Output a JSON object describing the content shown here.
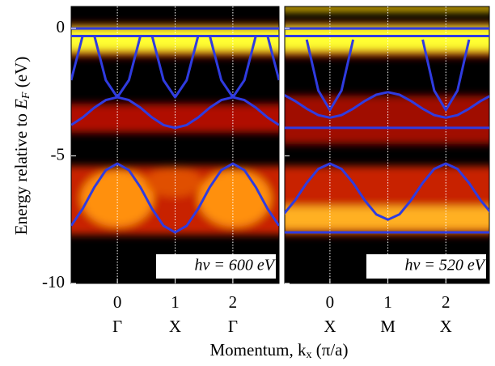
{
  "chart_data": [
    {
      "type": "line",
      "ylabel": [
        "Energy relative to ",
        "E",
        "F",
        " (eV)"
      ],
      "xlabel": [
        "Momentum, k",
        "x",
        " (π/a)"
      ],
      "annotation": "hν = 600 eV",
      "ylim": [
        -10,
        0.86
      ],
      "yticks": [
        0,
        -5,
        -10
      ],
      "xlim": [
        -0.8,
        2.8
      ],
      "xticks": [
        0,
        1,
        2
      ],
      "symmetry_labels": [
        "Γ",
        "X",
        "Γ"
      ],
      "grid": true,
      "x": [
        -0.8,
        -0.6,
        -0.4,
        -0.2,
        0,
        0.2,
        0.4,
        0.6,
        0.8,
        1,
        1.2,
        1.4,
        1.6,
        1.8,
        2,
        2.2,
        2.4,
        2.6,
        2.8
      ],
      "series": [
        {
          "color": "#2f3be0",
          "values": [
            -7.74,
            -7.07,
            -6.23,
            -5.56,
            -5.3,
            -5.56,
            -6.23,
            -7.07,
            -7.74,
            -8.0,
            -7.74,
            -7.07,
            -6.23,
            -5.56,
            -5.3,
            -5.56,
            -6.23,
            -7.07,
            -7.74
          ]
        },
        {
          "color": "#2f3be0",
          "values": [
            null,
            null,
            -0.28,
            -2.03,
            -2.7,
            -2.03,
            -0.28,
            null,
            null,
            null,
            null,
            null,
            -0.28,
            -2.03,
            -2.7,
            -2.03,
            -0.28,
            null,
            null
          ]
        },
        {
          "color": "#2f3be0",
          "values": [
            -2.03,
            -0.28,
            null,
            null,
            null,
            null,
            null,
            -0.28,
            -2.03,
            -2.7,
            -2.03,
            -0.28,
            null,
            null,
            null,
            null,
            null,
            -0.28,
            -2.03
          ]
        },
        {
          "color": "#2f3be0",
          "values": [
            -3.79,
            -3.49,
            -3.11,
            -2.81,
            -2.7,
            -2.81,
            -3.11,
            -3.49,
            -3.79,
            -3.9,
            -3.79,
            -3.49,
            -3.11,
            -2.81,
            -2.7,
            -2.81,
            -3.11,
            -3.49,
            -3.79
          ]
        },
        {
          "color": "#2f3be0",
          "values": [
            0,
            0,
            0,
            0,
            0,
            0,
            0,
            0,
            0,
            0,
            0,
            0,
            0,
            0,
            0,
            0,
            0,
            0,
            0
          ]
        },
        {
          "color": "#2f3be0",
          "values": [
            -0.3,
            -0.3,
            -0.3,
            -0.3,
            -0.3,
            -0.3,
            -0.3,
            -0.3,
            -0.3,
            -0.3,
            -0.3,
            -0.3,
            -0.3,
            -0.3,
            -0.3,
            -0.3,
            -0.3,
            -0.3,
            -0.3
          ]
        }
      ]
    },
    {
      "type": "line",
      "annotation": "hν = 520 eV",
      "ylim": [
        -10,
        0.86
      ],
      "xlim": [
        -0.78,
        2.75
      ],
      "xticks": [
        0,
        1,
        2
      ],
      "symmetry_labels": [
        "X",
        "M",
        "X"
      ],
      "grid": true,
      "x": [
        -0.8,
        -0.6,
        -0.4,
        -0.2,
        0,
        0.2,
        0.4,
        0.6,
        0.8,
        1,
        1.2,
        1.4,
        1.6,
        1.8,
        2,
        2.2,
        2.4,
        2.6,
        2.8
      ],
      "series": [
        {
          "color": "#2f3be0",
          "values": [
            -2.6,
            -2.85,
            -3.15,
            -3.4,
            -3.5,
            -3.4,
            -3.15,
            -2.85,
            -2.6,
            -2.5,
            -2.6,
            -2.85,
            -3.15,
            -3.4,
            -3.5,
            -3.4,
            -3.15,
            -2.85,
            -2.6
          ]
        },
        {
          "color": "#2f3be0",
          "values": [
            -7.29,
            -6.74,
            -6.06,
            -5.51,
            -5.3,
            -5.51,
            -6.06,
            -6.74,
            -7.29,
            -7.5,
            -7.29,
            -6.74,
            -6.06,
            -5.51,
            -5.3,
            -5.51,
            -6.06,
            -6.74,
            -7.29
          ]
        },
        {
          "color": "#2f3be0",
          "values": [
            null,
            null,
            -0.44,
            -2.44,
            -3.2,
            -2.44,
            -0.44,
            null,
            null,
            null,
            null,
            null,
            -0.44,
            -2.44,
            -3.2,
            -2.44,
            -0.44,
            null,
            null
          ]
        },
        {
          "color": "#2f3be0",
          "values": [
            0,
            0,
            0,
            0,
            0,
            0,
            0,
            0,
            0,
            0,
            0,
            0,
            0,
            0,
            0,
            0,
            0,
            0,
            0
          ]
        },
        {
          "color": "#2f3be0",
          "values": [
            -0.3,
            -0.3,
            -0.3,
            -0.3,
            -0.3,
            -0.3,
            -0.3,
            -0.3,
            -0.3,
            -0.3,
            -0.3,
            -0.3,
            -0.3,
            -0.3,
            -0.3,
            -0.3,
            -0.3,
            -0.3,
            -0.3
          ]
        },
        {
          "color": "#2f3be0",
          "values": [
            -3.9,
            -3.9,
            -3.9,
            -3.9,
            -3.9,
            -3.9,
            -3.9,
            -3.9,
            -3.9,
            -3.9,
            -3.9,
            -3.9,
            -3.9,
            -3.9,
            -3.9,
            -3.9,
            -3.9,
            -3.9,
            -3.9
          ]
        },
        {
          "color": "#2f3be0",
          "values": [
            -8.0,
            -8.0,
            -8.0,
            -8.0,
            -8.0,
            -8.0,
            -8.0,
            -8.0,
            -8.0,
            -8.0,
            -8.0,
            -8.0,
            -8.0,
            -8.0,
            -8.0,
            -8.0,
            -8.0,
            -8.0,
            -8.0
          ]
        }
      ]
    }
  ]
}
